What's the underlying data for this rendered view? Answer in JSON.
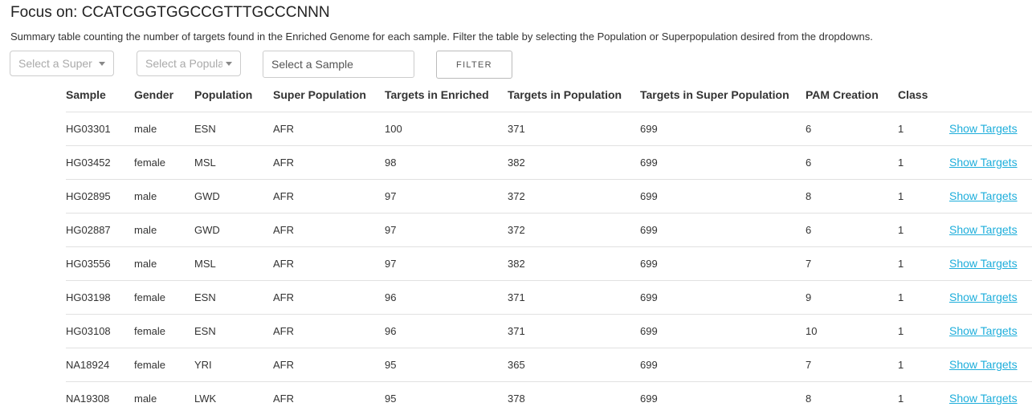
{
  "header": {
    "title": "Focus on: CCATCGGTGGCCGTTTGCCCNNN",
    "description": "Summary table counting the number of targets found in the Enriched Genome for each sample. Filter the table by selecting the Population or Superpopulation desired from the dropdowns."
  },
  "filters": {
    "superpopulation_placeholder": "Select a Super ...",
    "population_placeholder": "Select a Popula...",
    "sample_placeholder": "Select a Sample",
    "filter_label": "FILTER"
  },
  "table": {
    "columns": [
      "Sample",
      "Gender",
      "Population",
      "Super Population",
      "Targets in Enriched",
      "Targets in Population",
      "Targets in Super Population",
      "PAM Creation",
      "Class"
    ],
    "link_label": "Show Targets",
    "rows": [
      [
        "HG03301",
        "male",
        "ESN",
        "AFR",
        "100",
        "371",
        "699",
        "6",
        "1"
      ],
      [
        "HG03452",
        "female",
        "MSL",
        "AFR",
        "98",
        "382",
        "699",
        "6",
        "1"
      ],
      [
        "HG02895",
        "male",
        "GWD",
        "AFR",
        "97",
        "372",
        "699",
        "8",
        "1"
      ],
      [
        "HG02887",
        "male",
        "GWD",
        "AFR",
        "97",
        "372",
        "699",
        "6",
        "1"
      ],
      [
        "HG03556",
        "male",
        "MSL",
        "AFR",
        "97",
        "382",
        "699",
        "7",
        "1"
      ],
      [
        "HG03198",
        "female",
        "ESN",
        "AFR",
        "96",
        "371",
        "699",
        "9",
        "1"
      ],
      [
        "HG03108",
        "female",
        "ESN",
        "AFR",
        "96",
        "371",
        "699",
        "10",
        "1"
      ],
      [
        "NA18924",
        "female",
        "YRI",
        "AFR",
        "95",
        "365",
        "699",
        "7",
        "1"
      ],
      [
        "NA19308",
        "male",
        "LWK",
        "AFR",
        "95",
        "378",
        "699",
        "8",
        "1"
      ]
    ]
  }
}
